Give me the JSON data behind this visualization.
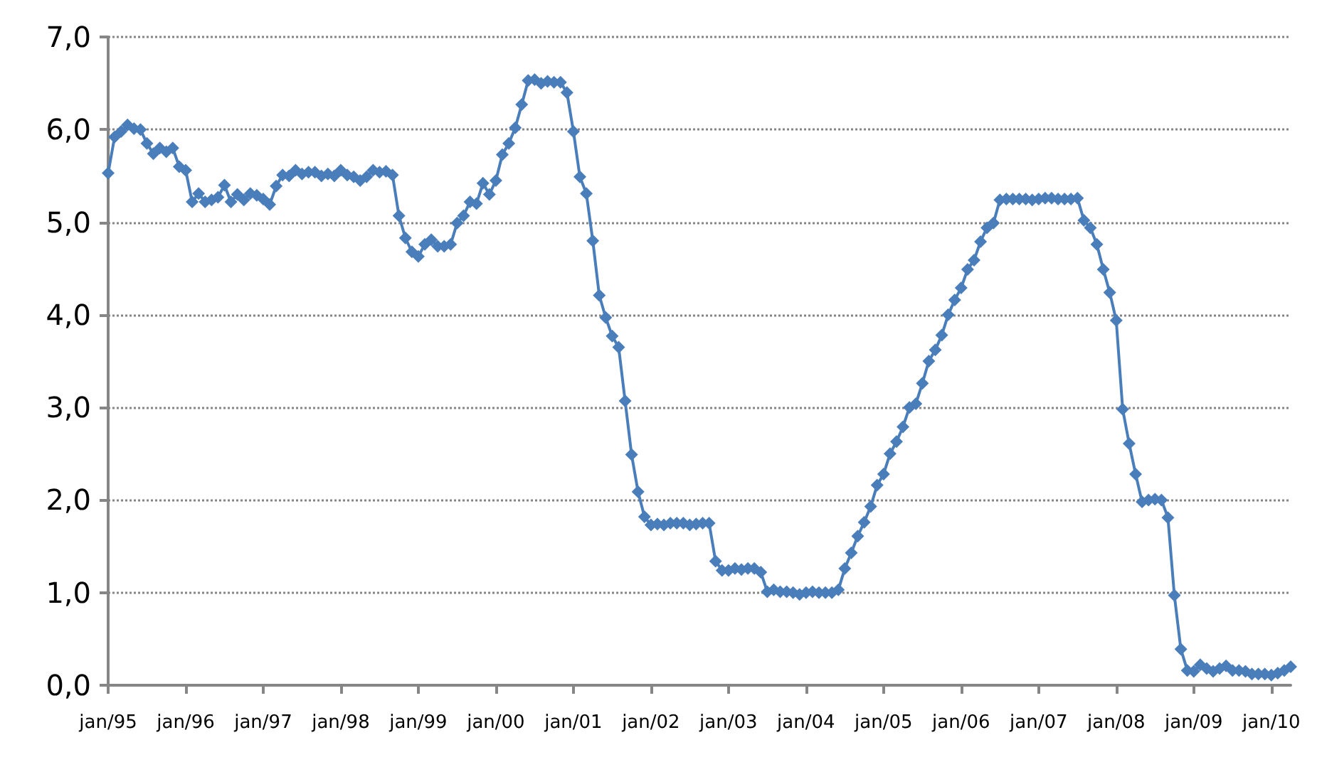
{
  "chart_data": {
    "type": "line",
    "categories": [
      "jan/95",
      null,
      null,
      null,
      null,
      null,
      null,
      null,
      null,
      null,
      null,
      null,
      "jan/96",
      null,
      null,
      null,
      null,
      null,
      null,
      null,
      null,
      null,
      null,
      null,
      "jan/97",
      null,
      null,
      null,
      null,
      null,
      null,
      null,
      null,
      null,
      null,
      null,
      "jan/98",
      null,
      null,
      null,
      null,
      null,
      null,
      null,
      null,
      null,
      null,
      null,
      "jan/99",
      null,
      null,
      null,
      null,
      null,
      null,
      null,
      null,
      null,
      null,
      null,
      "jan/00",
      null,
      null,
      null,
      null,
      null,
      null,
      null,
      null,
      null,
      null,
      null,
      "jan/01",
      null,
      null,
      null,
      null,
      null,
      null,
      null,
      null,
      null,
      null,
      null,
      "jan/02",
      null,
      null,
      null,
      null,
      null,
      null,
      null,
      null,
      null,
      null,
      null,
      "jan/03",
      null,
      null,
      null,
      null,
      null,
      null,
      null,
      null,
      null,
      null,
      null,
      "jan/04",
      null,
      null,
      null,
      null,
      null,
      null,
      null,
      null,
      null,
      null,
      null,
      "jan/05",
      null,
      null,
      null,
      null,
      null,
      null,
      null,
      null,
      null,
      null,
      null,
      "jan/06",
      null,
      null,
      null,
      null,
      null,
      null,
      null,
      null,
      null,
      null,
      null,
      "jan/07",
      null,
      null,
      null,
      null,
      null,
      null,
      null,
      null,
      null,
      null,
      null,
      "jan/08",
      null,
      null,
      null,
      null,
      null,
      null,
      null,
      null,
      null,
      null,
      null,
      "jan/09",
      null,
      null,
      null,
      null,
      null,
      null,
      null,
      null,
      null,
      null,
      null,
      "jan/10",
      null,
      null,
      null
    ],
    "series": [
      {
        "color": "#4a7ebb",
        "values": [
          5.53,
          5.92,
          5.98,
          6.05,
          6.01,
          6.0,
          5.85,
          5.74,
          5.8,
          5.76,
          5.8,
          5.6,
          5.56,
          5.22,
          5.31,
          5.22,
          5.24,
          5.27,
          5.4,
          5.22,
          5.3,
          5.24,
          5.31,
          5.29,
          5.25,
          5.19,
          5.39,
          5.51,
          5.5,
          5.56,
          5.52,
          5.54,
          5.54,
          5.5,
          5.52,
          5.5,
          5.56,
          5.51,
          5.49,
          5.45,
          5.49,
          5.56,
          5.54,
          5.55,
          5.51,
          5.07,
          4.83,
          4.68,
          4.63,
          4.76,
          4.81,
          4.74,
          4.74,
          4.76,
          4.99,
          5.07,
          5.22,
          5.2,
          5.42,
          5.3,
          5.45,
          5.73,
          5.85,
          6.02,
          6.27,
          6.53,
          6.54,
          6.5,
          6.52,
          6.51,
          6.51,
          6.4,
          5.98,
          5.49,
          5.31,
          4.8,
          4.21,
          3.97,
          3.77,
          3.65,
          3.07,
          2.49,
          2.09,
          1.82,
          1.73,
          1.74,
          1.73,
          1.75,
          1.75,
          1.75,
          1.73,
          1.74,
          1.75,
          1.75,
          1.34,
          1.24,
          1.24,
          1.26,
          1.25,
          1.26,
          1.26,
          1.22,
          1.01,
          1.03,
          1.01,
          1.01,
          1.0,
          0.98,
          1.0,
          1.01,
          1.0,
          1.0,
          1.0,
          1.03,
          1.26,
          1.43,
          1.61,
          1.76,
          1.93,
          2.16,
          2.28,
          2.5,
          2.63,
          2.79,
          3.0,
          3.04,
          3.26,
          3.5,
          3.62,
          3.78,
          4.0,
          4.16,
          4.29,
          4.49,
          4.59,
          4.79,
          4.94,
          4.99,
          5.24,
          5.25,
          5.25,
          5.25,
          5.25,
          5.24,
          5.25,
          5.26,
          5.26,
          5.25,
          5.25,
          5.25,
          5.26,
          5.02,
          4.94,
          4.76,
          4.49,
          4.24,
          3.94,
          2.98,
          2.61,
          2.28,
          1.98,
          2.0,
          2.01,
          2.0,
          1.81,
          0.97,
          0.39,
          0.16,
          0.15,
          0.22,
          0.18,
          0.15,
          0.18,
          0.21,
          0.16,
          0.16,
          0.15,
          0.12,
          0.12,
          0.12,
          0.11,
          0.13,
          0.16,
          0.2
        ]
      }
    ],
    "ylim": [
      0,
      7
    ],
    "yticks": [
      {
        "value": 0,
        "label": "0,0"
      },
      {
        "value": 1,
        "label": "1,0"
      },
      {
        "value": 2,
        "label": "2,0"
      },
      {
        "value": 3,
        "label": "3,0"
      },
      {
        "value": 4,
        "label": "4,0"
      },
      {
        "value": 5,
        "label": "5,0"
      },
      {
        "value": 6,
        "label": "6,0"
      },
      {
        "value": 7,
        "label": "7,0"
      }
    ],
    "grid": "y",
    "marker": "diamond",
    "line_style": "solid"
  }
}
